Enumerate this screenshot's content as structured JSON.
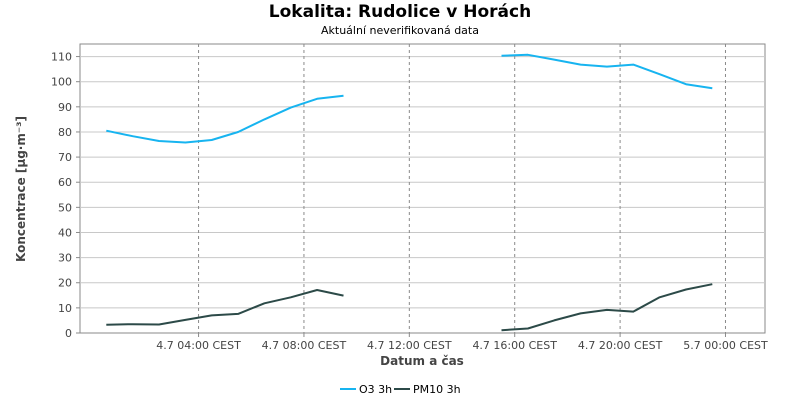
{
  "chart_data": {
    "type": "line",
    "title": "Lokalita: Rudolice v Horách",
    "subtitle": "Aktuální neverifikovaná data",
    "xlabel": "Datum a čas",
    "ylabel": "Koncentrace [µg·m⁻³]",
    "ylim": [
      0,
      115
    ],
    "yticks": [
      0,
      10,
      20,
      30,
      40,
      50,
      60,
      70,
      80,
      90,
      100,
      110
    ],
    "xlim_hours": [
      -0.5,
      25.5
    ],
    "xticks": [
      {
        "hour": 4,
        "label": "4.7 04:00 CEST"
      },
      {
        "hour": 8,
        "label": "4.7 08:00 CEST"
      },
      {
        "hour": 12,
        "label": "4.7 12:00 CEST"
      },
      {
        "hour": 16,
        "label": "4.7 16:00 CEST"
      },
      {
        "hour": 20,
        "label": "4.7 20:00 CEST"
      },
      {
        "hour": 24,
        "label": "5.7 00:00 CEST"
      }
    ],
    "grid": true,
    "legend_position": "bottom",
    "series": [
      {
        "name": "O3 3h",
        "color": "#17b4f0",
        "points": [
          [
            0.5,
            80.5
          ],
          [
            1.5,
            78.3
          ],
          [
            2.5,
            76.4
          ],
          [
            3.5,
            75.8
          ],
          [
            4.5,
            76.8
          ],
          [
            5.5,
            80.0
          ],
          [
            6.5,
            85.0
          ],
          [
            7.5,
            89.7
          ],
          [
            8.5,
            93.2
          ],
          [
            9.5,
            94.4
          ],
          [
            10.5,
            null
          ],
          [
            15.5,
            110.3
          ],
          [
            16.5,
            110.7
          ],
          [
            17.5,
            108.8
          ],
          [
            18.5,
            106.8
          ],
          [
            19.5,
            106.0
          ],
          [
            20.5,
            106.8
          ],
          [
            21.5,
            103.0
          ],
          [
            22.5,
            99.0
          ],
          [
            23.5,
            97.4
          ]
        ]
      },
      {
        "name": "PM10 3h",
        "color": "#2c4a48",
        "points": [
          [
            0.5,
            3.3
          ],
          [
            1.5,
            3.5
          ],
          [
            2.5,
            3.4
          ],
          [
            3.5,
            5.2
          ],
          [
            4.5,
            7.0
          ],
          [
            5.5,
            7.6
          ],
          [
            6.5,
            11.8
          ],
          [
            7.5,
            14.2
          ],
          [
            8.5,
            17.1
          ],
          [
            9.5,
            14.9
          ],
          [
            10.5,
            null
          ],
          [
            15.5,
            1.1
          ],
          [
            16.5,
            1.8
          ],
          [
            17.5,
            5.0
          ],
          [
            18.5,
            7.8
          ],
          [
            19.5,
            9.2
          ],
          [
            20.5,
            8.5
          ],
          [
            21.5,
            14.2
          ],
          [
            22.5,
            17.3
          ],
          [
            23.5,
            19.4
          ]
        ]
      }
    ]
  }
}
